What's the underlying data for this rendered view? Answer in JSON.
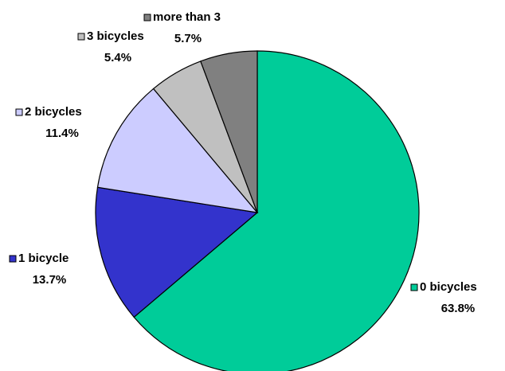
{
  "chart_data": {
    "type": "pie",
    "categories": [
      "0 bicycles",
      "1 bicycle",
      "2 bicycles",
      "3 bicycles",
      "more than 3"
    ],
    "values": [
      63.8,
      13.7,
      11.4,
      5.4,
      5.7
    ],
    "value_labels": [
      "63.8%",
      "13.7%",
      "11.4%",
      "5.4%",
      "5.7%"
    ],
    "colors": [
      "#00cc99",
      "#3333cc",
      "#ccccff",
      "#c0c0c0",
      "#808080"
    ]
  }
}
